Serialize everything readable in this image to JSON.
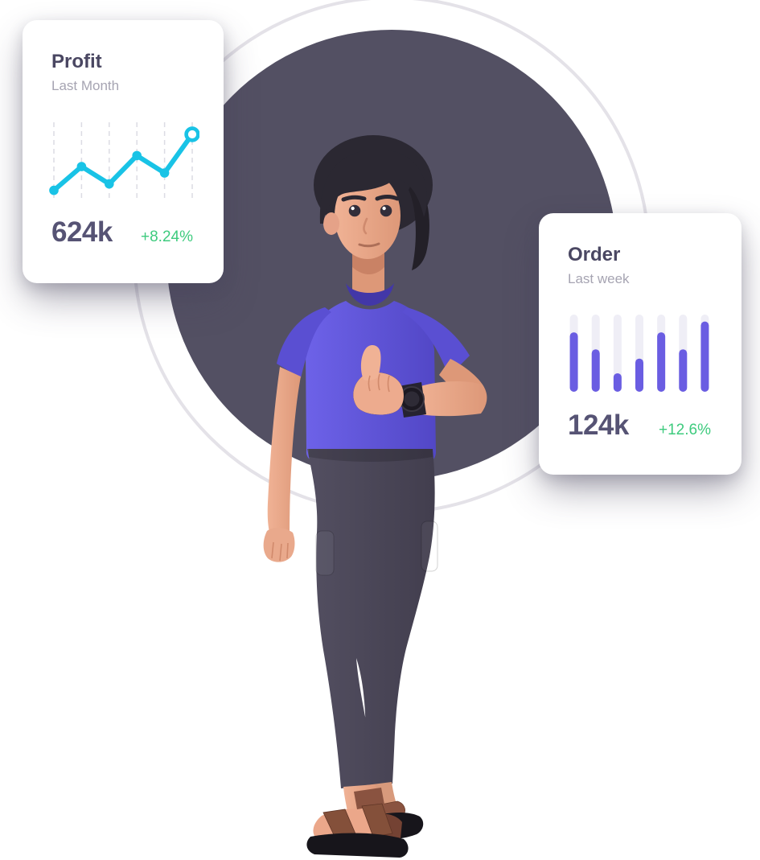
{
  "scene": {
    "background_color": "#ffffff",
    "dark_circle_color": "#535063",
    "ring_color": "#e4e2e8",
    "character_alt": "3D illustration of a man with dark hair, purple t-shirt, dark pants, wristwatch and brown sandals giving a thumbs-up"
  },
  "profit_card": {
    "title": "Profit",
    "subtitle": "Last Month",
    "value": "624k",
    "delta": "+8.24%"
  },
  "order_card": {
    "title": "Order",
    "subtitle": "Last week",
    "value": "124k",
    "delta": "+12.6%"
  },
  "colors": {
    "card_title": "#4a4762",
    "card_subtitle": "#a6a4b2",
    "card_value": "#565374",
    "delta_green": "#3ecb7e",
    "line_cyan": "#19c3e6",
    "grid_dash": "#dcdce4",
    "bar_purple": "#6a5de2",
    "bar_track": "#efeef6"
  },
  "chart_data": [
    {
      "type": "line",
      "title": "Profit",
      "period": "Last Month",
      "points": [
        0.08,
        0.45,
        0.18,
        0.62,
        0.35,
        0.95
      ],
      "ylim": [
        0,
        1
      ],
      "note": "sparkline, no axis tick labels shown; values are relative heights read from pixels",
      "color": "#19c3e6",
      "grid_color": "#dcdce4",
      "grid": "vertical-dashed, one line per point",
      "legend": "none",
      "end_marker": "open-ring on last point, filled dots on others"
    },
    {
      "type": "bar",
      "title": "Order",
      "period": "Last week",
      "values": [
        0.77,
        0.55,
        0.24,
        0.43,
        0.77,
        0.55,
        0.91
      ],
      "ylim": [
        0,
        1
      ],
      "note": "7 rounded progress-style bars on light full-height tracks, no axis labels shown",
      "color": "#6a5de2",
      "track_color": "#efeef6",
      "grid": "off",
      "legend": "none"
    }
  ]
}
